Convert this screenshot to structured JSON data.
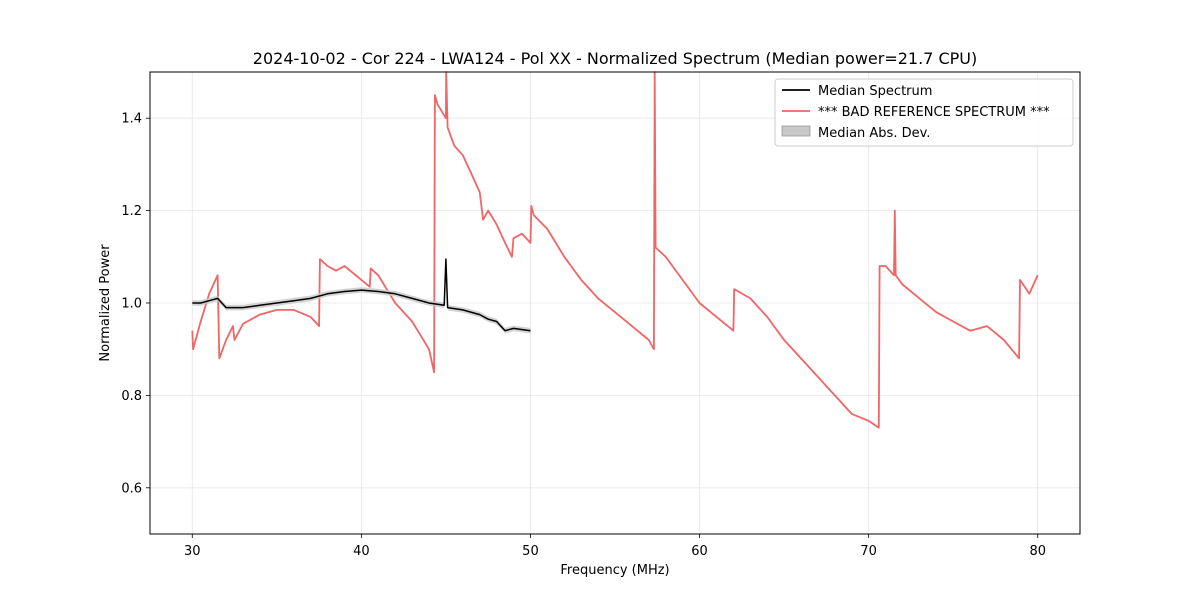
{
  "chart_data": {
    "type": "line",
    "title": "2024-10-02 - Cor 224 - LWA124 - Pol XX - Normalized Spectrum (Median power=21.7 CPU)",
    "xlabel": "Frequency (MHz)",
    "ylabel": "Normalized Power",
    "xlim": [
      27.5,
      82.5
    ],
    "ylim": [
      0.5,
      1.5
    ],
    "xticks": [
      30,
      40,
      50,
      60,
      70,
      80
    ],
    "yticks": [
      0.6,
      0.8,
      1.0,
      1.2,
      1.4
    ],
    "xtick_labels": [
      "30",
      "40",
      "50",
      "60",
      "70",
      "80"
    ],
    "ytick_labels": [
      "0.6",
      "0.8",
      "1.0",
      "1.2",
      "1.4"
    ],
    "grid": true,
    "legend_position": "top-right",
    "legend": {
      "median": "Median Spectrum",
      "reference": "*** BAD REFERENCE SPECTRUM ***",
      "mad": "Median Abs. Dev."
    },
    "colors": {
      "median": "#000000",
      "reference": "#f06565",
      "mad": "#c8c8c8",
      "grid": "#e6e6e6"
    },
    "series": [
      {
        "name": "Median Spectrum",
        "x": [
          30.0,
          30.5,
          31.0,
          31.5,
          32.0,
          33.0,
          34.0,
          35.0,
          36.0,
          37.0,
          38.0,
          39.0,
          40.0,
          41.0,
          42.0,
          43.0,
          44.0,
          44.9,
          45.0,
          45.1,
          46.0,
          47.0,
          47.5,
          48.0,
          48.5,
          49.0,
          50.0
        ],
        "y": [
          1.0,
          1.0,
          1.005,
          1.01,
          0.99,
          0.99,
          0.995,
          1.0,
          1.005,
          1.01,
          1.02,
          1.025,
          1.028,
          1.025,
          1.02,
          1.01,
          1.0,
          0.995,
          1.095,
          0.99,
          0.985,
          0.975,
          0.965,
          0.96,
          0.94,
          0.945,
          0.94
        ]
      },
      {
        "name": "*** BAD REFERENCE SPECTRUM ***",
        "x": [
          30.0,
          30.05,
          30.5,
          31.0,
          31.5,
          31.6,
          32.0,
          32.4,
          32.5,
          33.0,
          34.0,
          35.0,
          36.0,
          37.0,
          37.5,
          37.55,
          38.0,
          38.5,
          39.0,
          40.0,
          40.5,
          40.55,
          41.0,
          41.5,
          42.0,
          43.0,
          44.0,
          44.3,
          44.35,
          44.5,
          45.0,
          45.02,
          45.1,
          45.5,
          46.0,
          46.5,
          47.0,
          47.2,
          47.5,
          48.0,
          48.5,
          48.9,
          49.0,
          49.5,
          50.0,
          50.05,
          50.2,
          51.0,
          52.0,
          53.0,
          54.0,
          55.0,
          56.0,
          57.0,
          57.3,
          57.35,
          57.4,
          58.0,
          59.0,
          60.0,
          61.0,
          62.0,
          62.05,
          63.0,
          64.0,
          65.0,
          66.0,
          67.0,
          68.0,
          69.0,
          70.0,
          70.6,
          70.65,
          71.0,
          71.5,
          71.55,
          71.6,
          72.0,
          73.0,
          74.0,
          75.0,
          76.0,
          77.0,
          78.0,
          78.9,
          78.95,
          79.5,
          80.0
        ],
        "y": [
          0.94,
          0.9,
          0.96,
          1.02,
          1.06,
          0.88,
          0.92,
          0.95,
          0.92,
          0.955,
          0.975,
          0.985,
          0.985,
          0.97,
          0.95,
          1.095,
          1.08,
          1.07,
          1.08,
          1.05,
          1.035,
          1.075,
          1.06,
          1.03,
          1.0,
          0.96,
          0.9,
          0.85,
          1.45,
          1.43,
          1.4,
          1.5,
          1.38,
          1.34,
          1.32,
          1.28,
          1.24,
          1.18,
          1.2,
          1.17,
          1.13,
          1.1,
          1.14,
          1.15,
          1.13,
          1.21,
          1.19,
          1.16,
          1.1,
          1.05,
          1.01,
          0.98,
          0.95,
          0.92,
          0.9,
          1.5,
          1.12,
          1.1,
          1.05,
          1.0,
          0.97,
          0.94,
          1.03,
          1.01,
          0.97,
          0.92,
          0.88,
          0.84,
          0.8,
          0.76,
          0.745,
          0.73,
          1.08,
          1.08,
          1.06,
          1.2,
          1.06,
          1.04,
          1.01,
          0.98,
          0.96,
          0.94,
          0.95,
          0.92,
          0.88,
          1.05,
          1.02,
          1.06
        ]
      }
    ]
  }
}
